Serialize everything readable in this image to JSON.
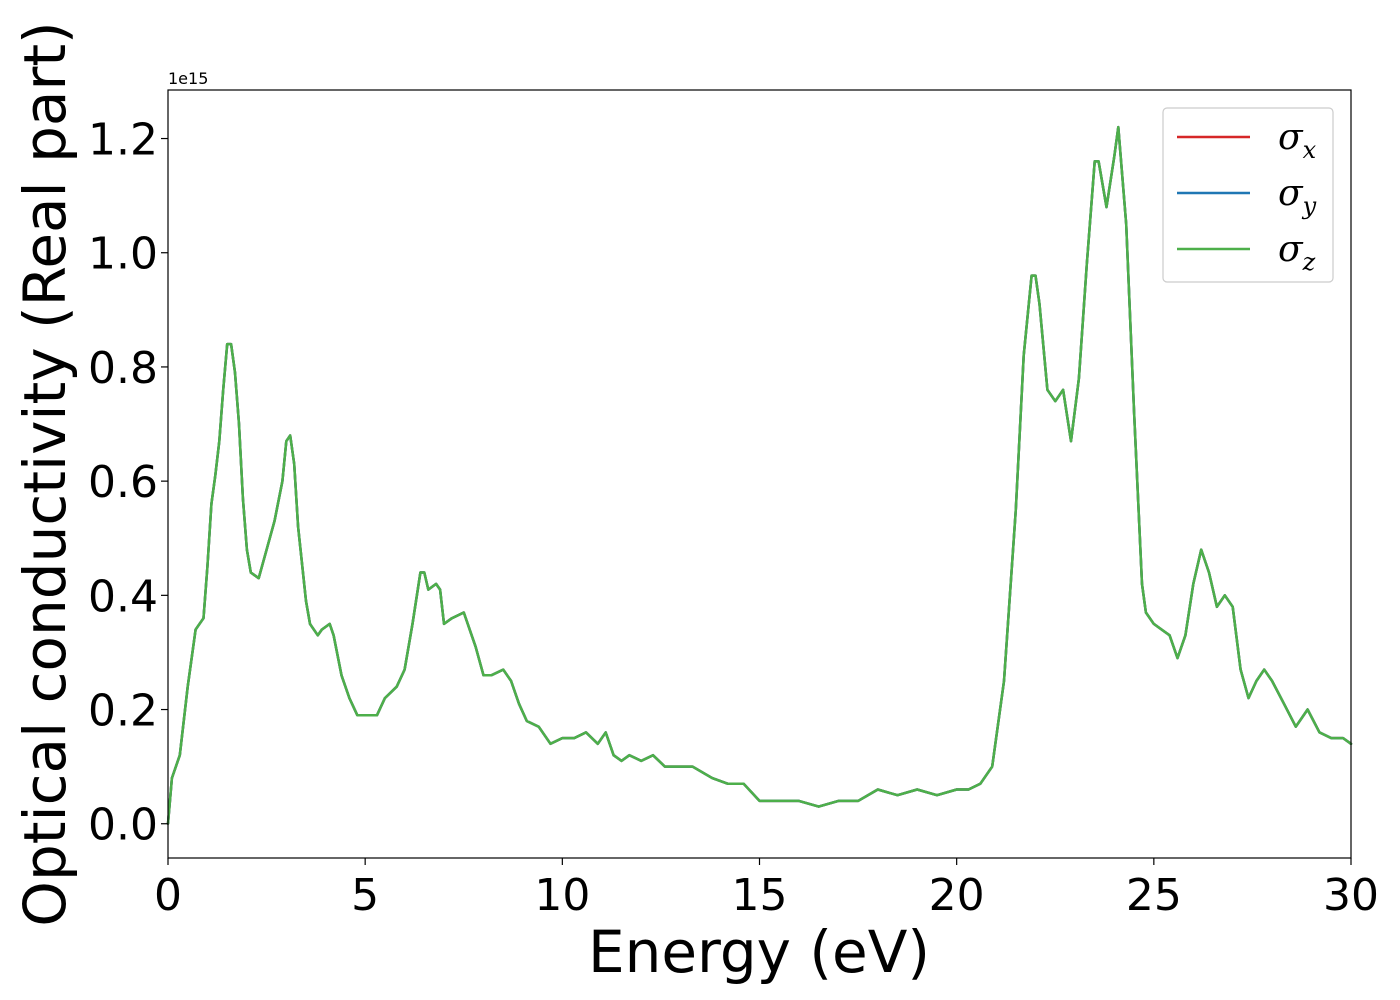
{
  "chart_data": {
    "type": "line",
    "title": "",
    "xlabel": "Energy (eV)",
    "ylabel": "Optical conductivity (Real part)",
    "y_offset_label": "1e15",
    "xlim": [
      0,
      30
    ],
    "ylim": [
      -0.06,
      1.285
    ],
    "xticks": [
      0,
      5,
      10,
      15,
      20,
      25,
      30
    ],
    "xtick_labels": [
      "0",
      "5",
      "10",
      "15",
      "20",
      "25",
      "30"
    ],
    "yticks": [
      0.0,
      0.2,
      0.4,
      0.6,
      0.8,
      1.0,
      1.2
    ],
    "ytick_labels": [
      "0.0",
      "0.2",
      "0.4",
      "0.6",
      "0.8",
      "1.0",
      "1.2"
    ],
    "grid": false,
    "legend_position": "top-right",
    "series": [
      {
        "legend_base": "σ",
        "legend_sub": "x",
        "color": "#d62728",
        "data_ref": "shared"
      },
      {
        "legend_base": "σ",
        "legend_sub": "y",
        "color": "#1f77b4",
        "data_ref": "shared"
      },
      {
        "legend_base": "σ",
        "legend_sub": "z",
        "color": "#4daf4a",
        "data_ref": "shared"
      }
    ],
    "x": [
      0.0,
      0.1,
      0.3,
      0.5,
      0.7,
      0.8,
      0.9,
      1.0,
      1.1,
      1.2,
      1.3,
      1.4,
      1.5,
      1.6,
      1.7,
      1.8,
      1.9,
      2.0,
      2.1,
      2.3,
      2.5,
      2.7,
      2.9,
      3.0,
      3.1,
      3.2,
      3.3,
      3.5,
      3.6,
      3.8,
      3.9,
      4.1,
      4.2,
      4.4,
      4.6,
      4.8,
      5.0,
      5.3,
      5.5,
      5.8,
      6.0,
      6.2,
      6.4,
      6.5,
      6.6,
      6.8,
      6.9,
      7.0,
      7.2,
      7.5,
      7.8,
      8.0,
      8.2,
      8.5,
      8.7,
      8.9,
      9.1,
      9.4,
      9.7,
      10.0,
      10.3,
      10.6,
      10.9,
      11.1,
      11.3,
      11.5,
      11.7,
      12.0,
      12.3,
      12.6,
      12.9,
      13.3,
      13.8,
      14.2,
      14.6,
      15.0,
      15.5,
      16.0,
      16.5,
      17.0,
      17.5,
      18.0,
      18.5,
      19.0,
      19.5,
      20.0,
      20.3,
      20.6,
      20.9,
      21.2,
      21.5,
      21.7,
      21.9,
      22.0,
      22.1,
      22.3,
      22.5,
      22.7,
      22.9,
      23.1,
      23.3,
      23.5,
      23.6,
      23.8,
      24.0,
      24.1,
      24.3,
      24.5,
      24.7,
      24.8,
      25.0,
      25.2,
      25.4,
      25.6,
      25.8,
      26.0,
      26.2,
      26.4,
      26.6,
      26.8,
      27.0,
      27.2,
      27.4,
      27.6,
      27.8,
      28.0,
      28.3,
      28.6,
      28.9,
      29.2,
      29.5,
      29.8,
      30.0
    ],
    "y": [
      0.0,
      0.08,
      0.12,
      0.24,
      0.34,
      0.35,
      0.36,
      0.45,
      0.56,
      0.61,
      0.67,
      0.76,
      0.84,
      0.84,
      0.79,
      0.7,
      0.57,
      0.48,
      0.44,
      0.43,
      0.48,
      0.53,
      0.6,
      0.67,
      0.68,
      0.63,
      0.52,
      0.39,
      0.35,
      0.33,
      0.34,
      0.35,
      0.33,
      0.26,
      0.22,
      0.19,
      0.19,
      0.19,
      0.22,
      0.24,
      0.27,
      0.35,
      0.44,
      0.44,
      0.41,
      0.42,
      0.41,
      0.35,
      0.36,
      0.37,
      0.31,
      0.26,
      0.26,
      0.27,
      0.25,
      0.21,
      0.18,
      0.17,
      0.14,
      0.15,
      0.15,
      0.16,
      0.14,
      0.16,
      0.12,
      0.11,
      0.12,
      0.11,
      0.12,
      0.1,
      0.1,
      0.1,
      0.08,
      0.07,
      0.07,
      0.04,
      0.04,
      0.04,
      0.03,
      0.04,
      0.04,
      0.06,
      0.05,
      0.06,
      0.05,
      0.06,
      0.06,
      0.07,
      0.1,
      0.25,
      0.55,
      0.82,
      0.96,
      0.96,
      0.91,
      0.76,
      0.74,
      0.76,
      0.67,
      0.78,
      0.98,
      1.16,
      1.16,
      1.08,
      1.17,
      1.22,
      1.05,
      0.72,
      0.42,
      0.37,
      0.35,
      0.34,
      0.33,
      0.29,
      0.33,
      0.42,
      0.48,
      0.44,
      0.38,
      0.4,
      0.38,
      0.27,
      0.22,
      0.25,
      0.27,
      0.25,
      0.21,
      0.17,
      0.2,
      0.16,
      0.15,
      0.15,
      0.14
    ]
  }
}
